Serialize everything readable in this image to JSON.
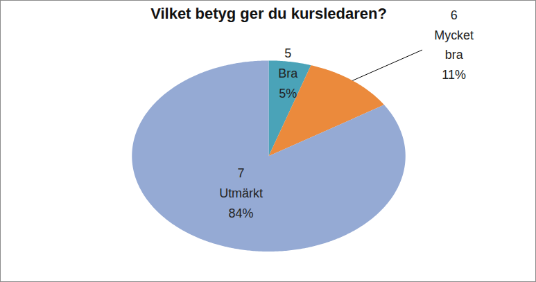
{
  "chart_data": {
    "type": "pie",
    "title": "Vilket betyg ger du kursledaren?",
    "categories": [
      "5 Bra",
      "6 Mycket bra",
      "7 Utmärkt"
    ],
    "values": [
      5,
      11,
      84
    ],
    "value_labels": [
      "5%",
      "11%",
      "84%"
    ],
    "colors": [
      "#4aa3b8",
      "#eb8a3c",
      "#95aad4"
    ],
    "data_labels": true
  }
}
